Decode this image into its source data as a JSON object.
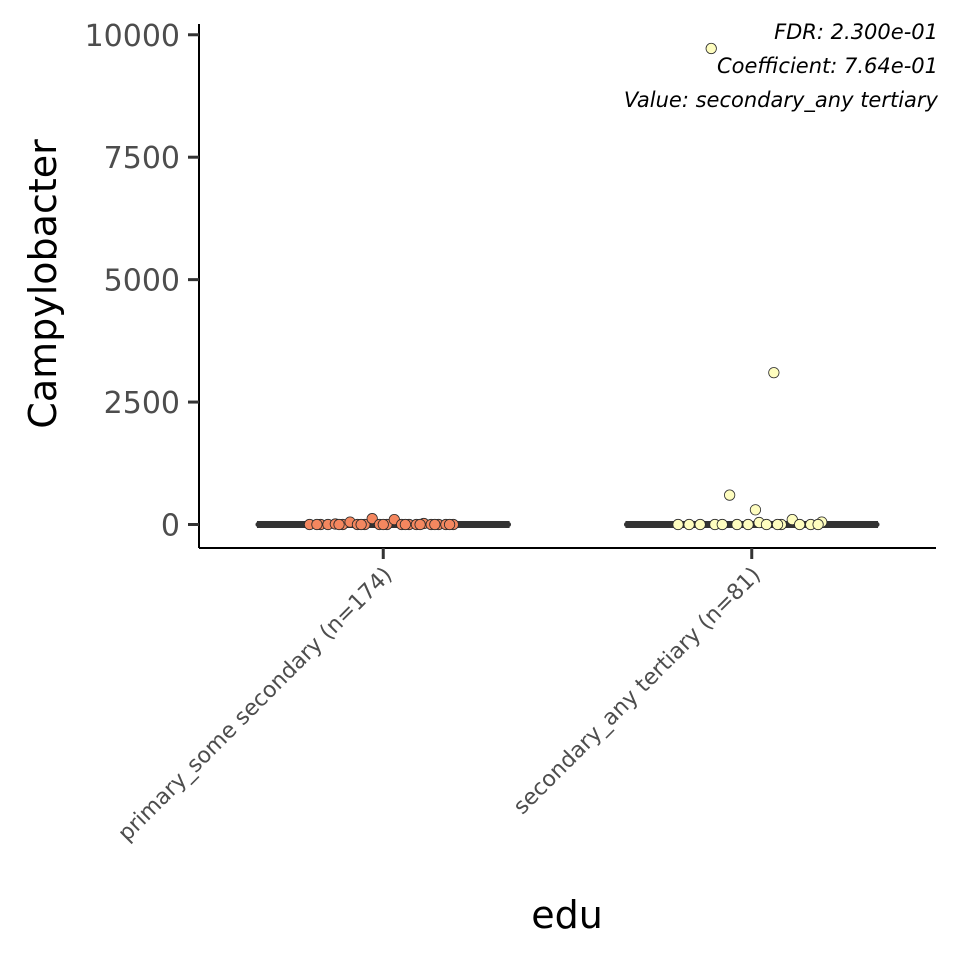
{
  "chart_data": {
    "type": "scatter",
    "subtype": "boxplot-with-jitter",
    "title": "",
    "xlabel": "edu",
    "ylabel": "Campylobacter",
    "ylim": [
      -480,
      10220
    ],
    "y_ticks": [
      0,
      2500,
      5000,
      7500,
      10000
    ],
    "y_tick_labels": [
      "0",
      "2500",
      "5000",
      "7500",
      "10000"
    ],
    "categories": [
      "primary_some secondary (n=174)",
      "secondary_any tertiary (n=81)"
    ],
    "grid": false,
    "annotations": [
      "FDR: 2.300e-01",
      "Coefficient: 7.64e-01",
      "Value: secondary_any tertiary"
    ],
    "box_color": "#333333",
    "series": [
      {
        "category": "primary_some secondary (n=174)",
        "color": "#f4875f",
        "box": {
          "min": 0,
          "q1": 0,
          "median": 0,
          "q3": 0,
          "max": 0
        },
        "points": [
          {
            "x": -0.2,
            "y": 0
          },
          {
            "x": -0.17,
            "y": 0
          },
          {
            "x": -0.15,
            "y": 0
          },
          {
            "x": -0.13,
            "y": 10
          },
          {
            "x": -0.11,
            "y": 0
          },
          {
            "x": -0.09,
            "y": 50
          },
          {
            "x": -0.07,
            "y": 0
          },
          {
            "x": -0.05,
            "y": 0
          },
          {
            "x": -0.03,
            "y": 120
          },
          {
            "x": -0.01,
            "y": 0
          },
          {
            "x": 0.01,
            "y": 0
          },
          {
            "x": 0.03,
            "y": 100
          },
          {
            "x": 0.05,
            "y": 0
          },
          {
            "x": 0.07,
            "y": 0
          },
          {
            "x": 0.09,
            "y": 0
          },
          {
            "x": 0.11,
            "y": 20
          },
          {
            "x": 0.13,
            "y": 0
          },
          {
            "x": 0.15,
            "y": 0
          },
          {
            "x": 0.17,
            "y": 0
          },
          {
            "x": 0.19,
            "y": 0
          },
          {
            "x": -0.06,
            "y": 0
          },
          {
            "x": 0.0,
            "y": 0
          },
          {
            "x": 0.06,
            "y": 0
          },
          {
            "x": -0.12,
            "y": 0
          },
          {
            "x": 0.14,
            "y": 0
          },
          {
            "x": 0.1,
            "y": 0
          },
          {
            "x": 0.18,
            "y": 0
          },
          {
            "x": -0.18,
            "y": 0
          }
        ]
      },
      {
        "category": "secondary_any tertiary (n=81)",
        "color": "#fefdbf",
        "box": {
          "min": 0,
          "q1": 0,
          "median": 0,
          "q3": 0,
          "max": 0
        },
        "points": [
          {
            "x": -0.11,
            "y": 9720
          },
          {
            "x": 0.06,
            "y": 3100
          },
          {
            "x": -0.06,
            "y": 600
          },
          {
            "x": 0.01,
            "y": 300
          },
          {
            "x": 0.11,
            "y": 100
          },
          {
            "x": 0.19,
            "y": 50
          },
          {
            "x": -0.2,
            "y": 0
          },
          {
            "x": -0.17,
            "y": 0
          },
          {
            "x": -0.14,
            "y": 0
          },
          {
            "x": -0.1,
            "y": 0
          },
          {
            "x": -0.04,
            "y": 0
          },
          {
            "x": -0.01,
            "y": 0
          },
          {
            "x": 0.02,
            "y": 40
          },
          {
            "x": 0.04,
            "y": 0
          },
          {
            "x": 0.08,
            "y": 0
          },
          {
            "x": 0.13,
            "y": 0
          },
          {
            "x": 0.16,
            "y": 0
          },
          {
            "x": 0.18,
            "y": 0
          },
          {
            "x": 0.07,
            "y": 0
          },
          {
            "x": -0.08,
            "y": 0
          }
        ]
      }
    ]
  }
}
